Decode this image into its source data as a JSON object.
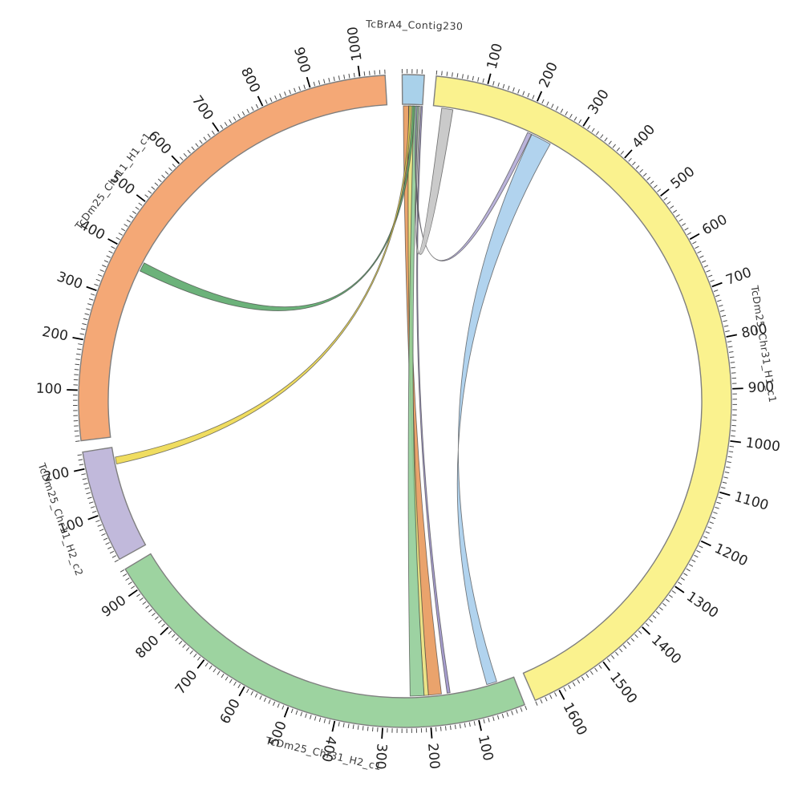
{
  "figure": {
    "kind": "circos-synteny-plot",
    "background": "#ffffff"
  },
  "chart_data": {
    "type": "circos",
    "title": "",
    "segments": [
      {
        "id": "contig",
        "label": "TcBrA4_Contig230",
        "color": "#a9d1ea",
        "start_angle": -0.5,
        "end_angle": 3.4,
        "length": 45,
        "tick_minor": 10,
        "tick_major": 100,
        "label_angle": 1.45,
        "label_radius": 468
      },
      {
        "id": "chr31h1",
        "label": "TcDm25_Chr31_H1_c1",
        "color": "#faf28e",
        "start_angle": 5.5,
        "end_angle": 156.5,
        "length": 1650,
        "tick_minor": 10,
        "tick_major": 100,
        "label_angle": 81,
        "label_radius": 452
      },
      {
        "id": "chr31h2",
        "label": "TcDm25_Chr31_H2_c1",
        "color": "#9dd3a0",
        "start_angle": 158.5,
        "end_angle": 239,
        "length": 950,
        "tick_minor": 10,
        "tick_major": 100,
        "label_angle": 193,
        "label_radius": 452
      },
      {
        "id": "chr11h2",
        "label": "TcDm25_Chr11_H2_c2",
        "color": "#c1b9db",
        "start_angle": 241,
        "end_angle": 261,
        "length": 235,
        "tick_minor": 10,
        "tick_major": 100,
        "label_angle": 251,
        "label_radius": 455
      },
      {
        "id": "chr11h1",
        "label": "TcDm25_Chr11_H1_c1",
        "color": "#f4a876",
        "start_angle": 263,
        "end_angle": 356.5,
        "length": 1050,
        "tick_minor": 10,
        "tick_major": 100,
        "label_angle": 307,
        "label_radius": 455
      }
    ],
    "links": [
      {
        "name": "contig-to-chr31h2-orange",
        "source": {
          "segment": "contig",
          "start": 2,
          "end": 14
        },
        "target": {
          "segment": "chr31h2",
          "start": 170,
          "end": 200
        },
        "color": "#e8995c",
        "twist": false
      },
      {
        "name": "contig-to-chr31h2-yellow",
        "source": {
          "segment": "contig",
          "start": 14,
          "end": 26
        },
        "target": {
          "segment": "chr31h2",
          "start": 200,
          "end": 210
        },
        "color": "#e9e07a",
        "twist": false
      },
      {
        "name": "contig-to-chr31h2-green",
        "source": {
          "segment": "contig",
          "start": 26,
          "end": 37
        },
        "target": {
          "segment": "chr31h2",
          "start": 210,
          "end": 242
        },
        "color": "#92cd98",
        "twist": false
      },
      {
        "name": "contig-to-chr11h1-green",
        "source": {
          "segment": "contig",
          "start": 22,
          "end": 27
        },
        "target": {
          "segment": "chr11h1",
          "start": 372,
          "end": 392
        },
        "color": "#5caa6b",
        "twist": false
      },
      {
        "name": "contig-to-chr11h2-gold",
        "source": {
          "segment": "contig",
          "start": 15,
          "end": 19
        },
        "target": {
          "segment": "chr11h2",
          "start": 196,
          "end": 212
        },
        "color": "#eed94f",
        "twist": false
      },
      {
        "name": "contig-to-chr31h2-purple",
        "source": {
          "segment": "contig",
          "start": 42,
          "end": 45
        },
        "target": {
          "segment": "chr31h2",
          "start": 150,
          "end": 157
        },
        "color": "#9c92c8",
        "twist": false
      },
      {
        "name": "chr31h1-to-contig-lavender",
        "source": {
          "segment": "chr31h1",
          "start": 208,
          "end": 217
        },
        "target": {
          "segment": "contig",
          "start": 30,
          "end": 33
        },
        "color": "#b3abd6",
        "twist": false
      },
      {
        "name": "chr31h1-to-chr31h2-blue",
        "source": {
          "segment": "chr31h1",
          "start": 218,
          "end": 262
        },
        "target": {
          "segment": "chr31h2",
          "start": 40,
          "end": 64
        },
        "color": "#a9ceec",
        "twist": true
      },
      {
        "name": "chr31h1-to-contig-gray",
        "source": {
          "segment": "chr31h1",
          "start": 18,
          "end": 42
        },
        "target": {
          "segment": "contig",
          "start": 36,
          "end": 40
        },
        "color": "#c4c4c4",
        "twist": false
      }
    ],
    "layout_hints": {
      "center": [
        505,
        500
      ],
      "outer_radius": 407,
      "inner_radius": 370,
      "tick_label_every": 100,
      "minor_tick_every": 10
    }
  }
}
